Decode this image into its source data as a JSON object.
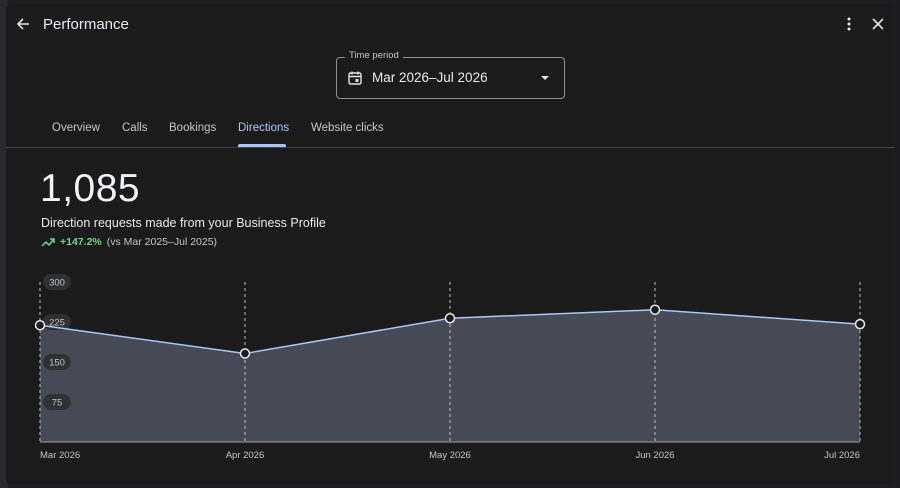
{
  "header": {
    "title": "Performance",
    "back_icon": "arrow-back-icon",
    "more_icon": "more-vert-icon",
    "close_icon": "close-icon"
  },
  "time_period": {
    "label": "Time period",
    "value": "Mar 2026–Jul 2026",
    "icon": "calendar-icon"
  },
  "tabs": [
    {
      "label": "Overview",
      "active": false
    },
    {
      "label": "Calls",
      "active": false
    },
    {
      "label": "Bookings",
      "active": false
    },
    {
      "label": "Directions",
      "active": true
    },
    {
      "label": "Website clicks",
      "active": false
    }
  ],
  "metric": {
    "total": "1,085",
    "description": "Direction requests made from your Business Profile",
    "change": "+147.2%",
    "comparison": "(vs Mar 2025–Jul 2025)",
    "change_color": "#6dd58c"
  },
  "chart_data": {
    "type": "area",
    "x": [
      "Mar 2026",
      "Apr 2026",
      "May 2026",
      "Jun 2026",
      "Jul 2026"
    ],
    "values": [
      219,
      166,
      232,
      248,
      221
    ],
    "y_ticks": [
      300,
      225,
      150,
      75
    ],
    "ylim": [
      0,
      300
    ],
    "grid": "vertical dashed",
    "line_color": "#a8c7fa",
    "fill_color": "#464a55"
  }
}
